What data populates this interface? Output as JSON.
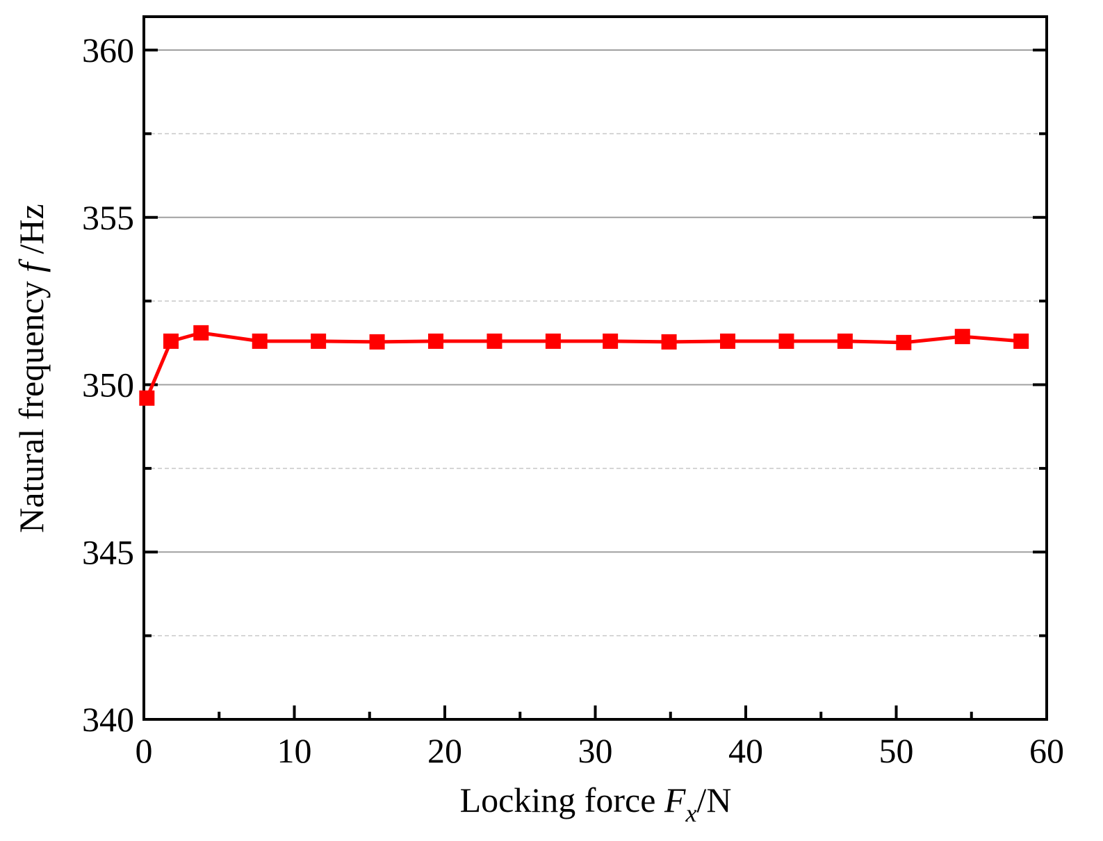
{
  "chart_data": {
    "type": "line",
    "xlabel": [
      "Locking force ",
      "F",
      "x",
      "/N"
    ],
    "ylabel": [
      "Natural frequency ",
      "f",
      " /Hz"
    ],
    "xlim": [
      0,
      60
    ],
    "ylim": [
      340,
      361
    ],
    "xticks": [
      0,
      10,
      20,
      30,
      40,
      50,
      60
    ],
    "xminorticks": [
      5,
      15,
      25,
      35,
      45,
      55
    ],
    "yticks": [
      340,
      345,
      350,
      355,
      360
    ],
    "yminorticks": [
      342.5,
      347.5,
      352.5,
      357.5
    ],
    "grid": true,
    "series": [
      {
        "color": "#ff0000",
        "x": [
          0.2,
          1.8,
          3.8,
          7.7,
          11.6,
          15.5,
          19.4,
          23.3,
          27.2,
          31,
          34.9,
          38.8,
          42.7,
          46.6,
          50.5,
          54.4,
          58.3
        ],
        "values": [
          349.6,
          351.3,
          351.55,
          351.3,
          351.3,
          351.28,
          351.3,
          351.3,
          351.3,
          351.3,
          351.28,
          351.3,
          351.3,
          351.3,
          351.26,
          351.44,
          351.3
        ]
      }
    ]
  }
}
